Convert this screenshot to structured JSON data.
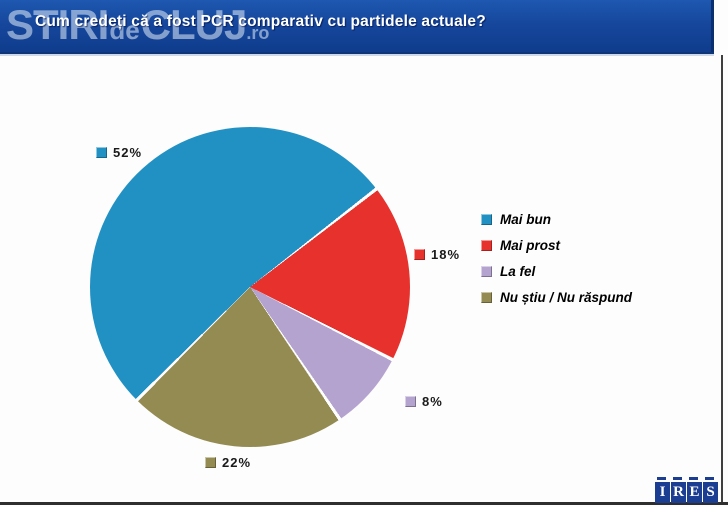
{
  "header": {
    "title": "Cum credeți că a fost PCR comparativ cu partidele actuale?"
  },
  "watermark": {
    "part1": "STIRI",
    "part2": "de",
    "part3": "CLUJ",
    "part4": ".ro"
  },
  "chart_data": {
    "type": "pie",
    "title": "Cum credeți că a fost PCR comparativ cu partidele actuale?",
    "start_angle_deg": 225,
    "direction": "clockwise",
    "legend_position": "right",
    "data_labels": "outside, percent with color swatch",
    "slices": [
      {
        "label": "Mai bun",
        "value": 52,
        "data_label": "52%",
        "color": "#2191C4"
      },
      {
        "label": "Mai prost",
        "value": 18,
        "data_label": "18%",
        "color": "#E7312C"
      },
      {
        "label": "La fel",
        "value": 8,
        "data_label": "8%",
        "color": "#B4A3CF"
      },
      {
        "label": "Nu știu / Nu răspund",
        "value": 22,
        "data_label": "22%",
        "color": "#938B52"
      }
    ]
  },
  "logo": {
    "letters": [
      "I",
      "R",
      "E",
      "S"
    ]
  },
  "colors": {
    "header_bg": "#16479D",
    "slice_separator": "#FFFFFF",
    "frame_line": "#2E2E2E",
    "logo_blue": "#1C3E92"
  }
}
